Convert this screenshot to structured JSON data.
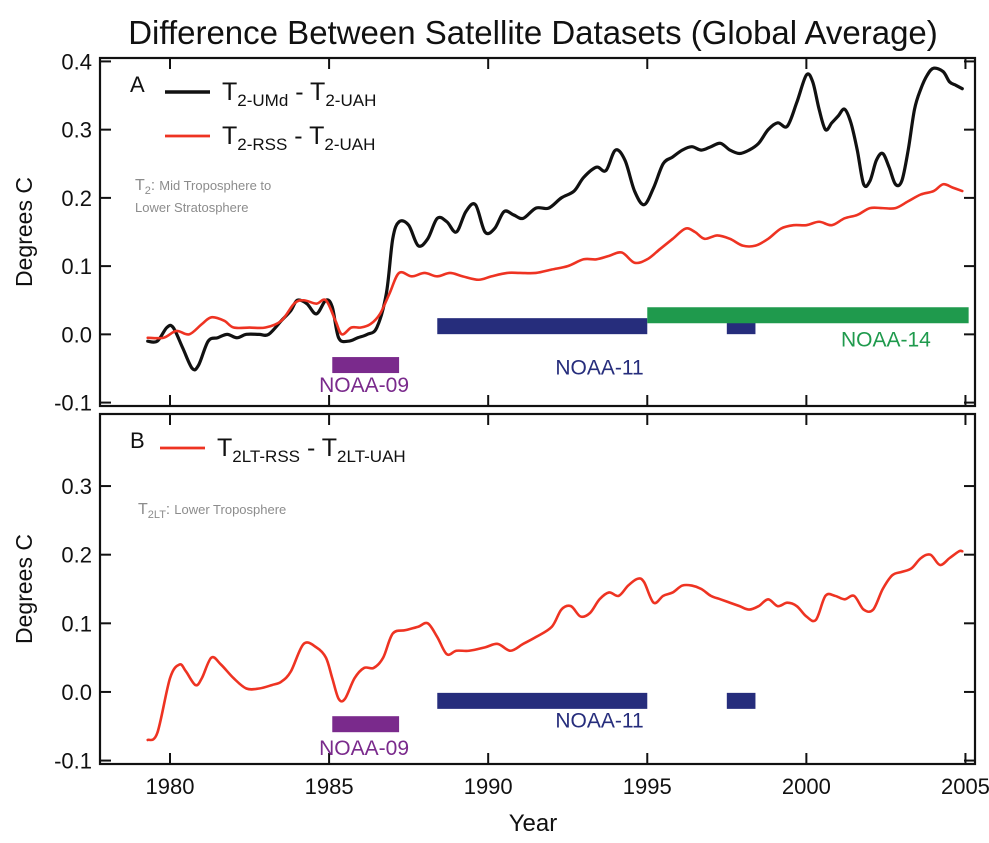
{
  "title": "Difference Between Satellite Datasets (Global Average)",
  "xlabel": "Year",
  "colors": {
    "black_series": "#111111",
    "red_series": "#ee3322",
    "noaa09": "#7a2a8c",
    "noaa11": "#262d7c",
    "noaa14": "#1f9a4d",
    "note_text": "#8c8c8c",
    "axis": "#111111"
  },
  "chart_data": [
    {
      "type": "line",
      "panel_label": "A",
      "ylabel": "Degrees C",
      "xlim": [
        1977.8,
        2005.3
      ],
      "ylim": [
        -0.105,
        0.405
      ],
      "x_ticks": [
        1980,
        1985,
        1990,
        1995,
        2000,
        2005
      ],
      "x_tick_labels": [
        "1980",
        "1985",
        "1990",
        "1995",
        "2000",
        "2005"
      ],
      "y_ticks": [
        -0.1,
        0.0,
        0.1,
        0.2,
        0.3,
        0.4
      ],
      "y_tick_labels": [
        "-0.1",
        "0.0",
        "0.1",
        "0.2",
        "0.3",
        "0.4"
      ],
      "legend": [
        {
          "series": "umd_minus_uah",
          "main1": "T",
          "sub1": "2-UMd",
          "main2": " - T",
          "sub2": "2-UAH"
        },
        {
          "series": "rss_minus_uah",
          "main1": "T",
          "sub1": "2-RSS",
          "main2": " - T",
          "sub2": "2-UAH"
        }
      ],
      "note": {
        "symbol": "T",
        "symbol_sub": "2",
        "colon": ":",
        "line1": "Mid Troposphere to",
        "line2": "Lower Stratosphere"
      },
      "series": [
        {
          "key": "umd_minus_uah",
          "color": "#111111",
          "x": [
            1979.3,
            1979.6,
            1979.9,
            1980.1,
            1980.4,
            1980.7,
            1980.9,
            1981.2,
            1981.5,
            1981.8,
            1982.1,
            1982.4,
            1982.8,
            1983.1,
            1983.5,
            1983.8,
            1984.0,
            1984.3,
            1984.6,
            1984.9,
            1985.1,
            1985.3,
            1985.6,
            1985.9,
            1986.2,
            1986.5,
            1986.8,
            1987.0,
            1987.2,
            1987.5,
            1987.8,
            1988.1,
            1988.4,
            1988.7,
            1989.0,
            1989.3,
            1989.6,
            1989.9,
            1990.2,
            1990.5,
            1990.8,
            1991.1,
            1991.5,
            1991.9,
            1992.3,
            1992.7,
            1993.0,
            1993.4,
            1993.7,
            1994.0,
            1994.3,
            1994.6,
            1994.9,
            1995.2,
            1995.5,
            1995.8,
            1996.1,
            1996.4,
            1996.7,
            1997.0,
            1997.3,
            1997.6,
            1997.9,
            1998.2,
            1998.5,
            1998.8,
            1999.1,
            1999.4,
            1999.7,
            2000.0,
            2000.2,
            2000.4,
            2000.6,
            2000.8,
            2001.0,
            2001.2,
            2001.4,
            2001.6,
            2001.8,
            2002.0,
            2002.2,
            2002.4,
            2002.6,
            2002.8,
            2003.0,
            2003.2,
            2003.4,
            2003.6,
            2003.8,
            2004.0,
            2004.3,
            2004.5,
            2004.7,
            2004.9
          ],
          "y": [
            -0.01,
            -0.01,
            0.01,
            0.01,
            -0.02,
            -0.05,
            -0.045,
            -0.01,
            -0.005,
            0.0,
            -0.005,
            0.0,
            0.0,
            0.0,
            0.02,
            0.035,
            0.05,
            0.045,
            0.03,
            0.05,
            0.04,
            -0.005,
            -0.01,
            -0.005,
            0.0,
            0.01,
            0.06,
            0.14,
            0.165,
            0.16,
            0.13,
            0.14,
            0.17,
            0.165,
            0.15,
            0.18,
            0.19,
            0.15,
            0.155,
            0.18,
            0.175,
            0.17,
            0.185,
            0.185,
            0.2,
            0.21,
            0.23,
            0.245,
            0.24,
            0.27,
            0.255,
            0.21,
            0.19,
            0.215,
            0.25,
            0.26,
            0.27,
            0.275,
            0.27,
            0.275,
            0.28,
            0.27,
            0.265,
            0.27,
            0.28,
            0.3,
            0.31,
            0.305,
            0.34,
            0.38,
            0.37,
            0.33,
            0.3,
            0.31,
            0.32,
            0.33,
            0.31,
            0.27,
            0.22,
            0.225,
            0.255,
            0.265,
            0.245,
            0.22,
            0.225,
            0.27,
            0.33,
            0.36,
            0.38,
            0.39,
            0.385,
            0.37,
            0.365,
            0.36
          ]
        },
        {
          "key": "rss_minus_uah",
          "color": "#ee3322",
          "x": [
            1979.3,
            1979.8,
            1980.2,
            1980.6,
            1981.0,
            1981.3,
            1981.7,
            1982.0,
            1982.5,
            1983.0,
            1983.5,
            1983.9,
            1984.2,
            1984.6,
            1984.9,
            1985.2,
            1985.4,
            1985.7,
            1986.0,
            1986.3,
            1986.6,
            1986.9,
            1987.2,
            1987.6,
            1988.0,
            1988.4,
            1988.8,
            1989.2,
            1989.7,
            1990.1,
            1990.6,
            1991.0,
            1991.5,
            1992.0,
            1992.5,
            1993.0,
            1993.4,
            1993.8,
            1994.2,
            1994.6,
            1995.0,
            1995.4,
            1995.8,
            1996.2,
            1996.5,
            1996.8,
            1997.2,
            1997.6,
            1998.0,
            1998.4,
            1998.8,
            1999.2,
            1999.6,
            2000.0,
            2000.4,
            2000.8,
            2001.2,
            2001.6,
            2002.0,
            2002.4,
            2002.8,
            2003.2,
            2003.6,
            2004.0,
            2004.3,
            2004.6,
            2004.9
          ],
          "y": [
            -0.005,
            -0.005,
            0.005,
            0.0,
            0.015,
            0.025,
            0.02,
            0.01,
            0.01,
            0.01,
            0.02,
            0.045,
            0.05,
            0.045,
            0.05,
            0.02,
            0.0,
            0.01,
            0.01,
            0.015,
            0.03,
            0.06,
            0.09,
            0.085,
            0.09,
            0.085,
            0.09,
            0.085,
            0.08,
            0.085,
            0.09,
            0.09,
            0.09,
            0.095,
            0.1,
            0.11,
            0.11,
            0.115,
            0.12,
            0.105,
            0.11,
            0.125,
            0.14,
            0.155,
            0.15,
            0.14,
            0.145,
            0.14,
            0.13,
            0.13,
            0.14,
            0.155,
            0.16,
            0.16,
            0.165,
            0.16,
            0.17,
            0.175,
            0.185,
            0.185,
            0.185,
            0.195,
            0.205,
            0.21,
            0.22,
            0.215,
            0.21
          ]
        }
      ],
      "bars": [
        {
          "label": "NOAA-09",
          "color": "#7a2a8c",
          "x0": 1985.1,
          "x1": 1987.2,
          "y": -0.045,
          "label_y": -0.073,
          "label_x": 1986.1
        },
        {
          "label": "NOAA-11",
          "color": "#262d7c",
          "x0": 1988.4,
          "x1": 1995.0,
          "y": 0.012,
          "label_y": -0.047,
          "label_x": 1993.5
        },
        {
          "label": "",
          "color": "#262d7c",
          "x0": 1997.5,
          "x1": 1998.4,
          "y": 0.012,
          "label_y": null,
          "label_x": null
        },
        {
          "label": "NOAA-14",
          "color": "#1f9a4d",
          "x0": 1995.0,
          "x1": 2005.1,
          "y": 0.028,
          "label_y": -0.006,
          "label_x": 2002.5
        }
      ]
    },
    {
      "type": "line",
      "panel_label": "B",
      "ylabel": "Degrees C",
      "xlim": [
        1977.8,
        2005.3
      ],
      "ylim": [
        -0.105,
        0.405
      ],
      "x_ticks": [
        1980,
        1985,
        1990,
        1995,
        2000,
        2005
      ],
      "x_tick_labels": [
        "1980",
        "1985",
        "1990",
        "1995",
        "2000",
        "2005"
      ],
      "y_ticks": [
        -0.1,
        0.0,
        0.1,
        0.2,
        0.3
      ],
      "y_tick_labels": [
        "-0.1",
        "0.0",
        "0.1",
        "0.2",
        "0.3"
      ],
      "legend": [
        {
          "series": "rss_minus_uah_lt",
          "main1": "T",
          "sub1": "2LT-RSS",
          "main2": " - T",
          "sub2": "2LT-UAH"
        }
      ],
      "note": {
        "symbol": "T",
        "symbol_sub": "2LT",
        "colon": ":",
        "line1": "Lower Troposphere",
        "line2": ""
      },
      "series": [
        {
          "key": "rss_minus_uah_lt",
          "color": "#ee3322",
          "x": [
            1979.3,
            1979.6,
            1980.0,
            1980.3,
            1980.5,
            1980.8,
            1981.0,
            1981.3,
            1981.6,
            1982.0,
            1982.4,
            1982.8,
            1983.2,
            1983.5,
            1983.8,
            1984.2,
            1984.6,
            1984.9,
            1985.1,
            1985.3,
            1985.5,
            1985.8,
            1986.1,
            1986.4,
            1986.7,
            1987.0,
            1987.4,
            1987.8,
            1988.1,
            1988.4,
            1988.7,
            1989.0,
            1989.4,
            1989.9,
            1990.3,
            1990.7,
            1991.1,
            1991.5,
            1992.0,
            1992.3,
            1992.6,
            1992.9,
            1993.2,
            1993.5,
            1993.8,
            1994.1,
            1994.4,
            1994.7,
            1994.9,
            1995.2,
            1995.5,
            1995.8,
            1996.1,
            1996.4,
            1996.7,
            1997.0,
            1997.3,
            1997.6,
            1997.9,
            1998.2,
            1998.5,
            1998.8,
            1999.1,
            1999.4,
            1999.7,
            2000.0,
            2000.3,
            2000.6,
            2000.9,
            2001.2,
            2001.5,
            2001.8,
            2002.1,
            2002.4,
            2002.7,
            2003.0,
            2003.3,
            2003.6,
            2003.9,
            2004.2,
            2004.5,
            2004.8,
            2004.9
          ],
          "y": [
            -0.07,
            -0.06,
            0.02,
            0.04,
            0.03,
            0.01,
            0.02,
            0.05,
            0.04,
            0.02,
            0.005,
            0.005,
            0.01,
            0.015,
            0.03,
            0.07,
            0.065,
            0.05,
            0.02,
            -0.01,
            -0.01,
            0.02,
            0.035,
            0.035,
            0.05,
            0.085,
            0.09,
            0.095,
            0.1,
            0.08,
            0.055,
            0.06,
            0.06,
            0.065,
            0.07,
            0.06,
            0.07,
            0.08,
            0.095,
            0.12,
            0.125,
            0.11,
            0.115,
            0.135,
            0.145,
            0.14,
            0.155,
            0.165,
            0.16,
            0.13,
            0.14,
            0.145,
            0.155,
            0.155,
            0.15,
            0.14,
            0.135,
            0.13,
            0.125,
            0.12,
            0.125,
            0.135,
            0.125,
            0.13,
            0.125,
            0.11,
            0.105,
            0.14,
            0.14,
            0.135,
            0.14,
            0.12,
            0.12,
            0.15,
            0.17,
            0.175,
            0.18,
            0.195,
            0.2,
            0.185,
            0.195,
            0.205,
            0.205
          ]
        }
      ],
      "bars": [
        {
          "label": "NOAA-09",
          "color": "#7a2a8c",
          "x0": 1985.1,
          "x1": 1987.2,
          "y": -0.047,
          "label_y": -0.08,
          "label_x": 1986.1
        },
        {
          "label": "NOAA-11",
          "color": "#262d7c",
          "x0": 1988.4,
          "x1": 1995.0,
          "y": -0.013,
          "label_y": -0.04,
          "label_x": 1993.5
        },
        {
          "label": "",
          "color": "#262d7c",
          "x0": 1997.5,
          "x1": 1998.4,
          "y": -0.013,
          "label_y": null,
          "label_x": null
        }
      ]
    }
  ]
}
